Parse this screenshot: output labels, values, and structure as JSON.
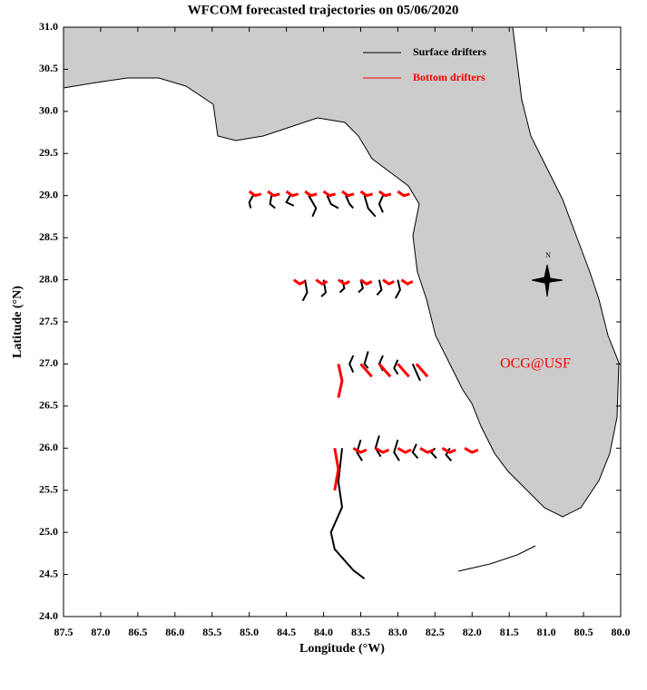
{
  "chart_data": {
    "type": "line",
    "title": "WFCOM forecasted trajectories on 05/06/2020",
    "x_label": "Longitude (°W)",
    "y_label": "Latitude (°N)",
    "annotations": [
      "OCG@USF",
      "N"
    ],
    "xlim": [
      87.5,
      80.0
    ],
    "ylim": [
      24.0,
      31.0
    ],
    "xticks": [
      87.5,
      {
        "value": 87,
        "label": "87.0"
      },
      86.5,
      {
        "value": 86,
        "label": "86.0"
      },
      85.5,
      {
        "value": 85,
        "label": "85.0"
      },
      84.5,
      {
        "value": 84,
        "label": "84.0"
      },
      83.5,
      {
        "value": 83,
        "label": "83.0"
      },
      82.5,
      {
        "value": 82,
        "label": "82.0"
      },
      81.5,
      {
        "value": 81,
        "label": "81.0"
      },
      80.5,
      {
        "value": 80,
        "label": "80.0"
      }
    ],
    "yticks": [
      {
        "value": 24,
        "label": "24.0"
      },
      24.5,
      {
        "value": 25,
        "label": "25.0"
      },
      25.5,
      {
        "value": 26,
        "label": "26.0"
      },
      26.5,
      {
        "value": 27,
        "label": "27.0"
      },
      27.5,
      {
        "value": 28,
        "label": "28.0"
      },
      28.5,
      {
        "value": 29,
        "label": "29.0"
      },
      29.5,
      {
        "value": 30,
        "label": "30.0"
      },
      30.5,
      {
        "value": 31,
        "label": "31.0"
      }
    ],
    "series": [
      {
        "name": "Surface drifters",
        "color": "#000000",
        "x": [
          84.95,
          85.0,
          84.98,
          null,
          84.7,
          84.72,
          84.65,
          null,
          84.45,
          84.5,
          84.4,
          null,
          84.2,
          84.1,
          84.15,
          null,
          83.95,
          83.9,
          83.8,
          null,
          83.7,
          83.65,
          83.6,
          null,
          83.45,
          83.4,
          83.3,
          null,
          83.2,
          83.25,
          83.2,
          null,
          84.25,
          84.22,
          84.28,
          null,
          84.0,
          83.97,
          84.03,
          null,
          83.75,
          83.72,
          83.78,
          null,
          83.5,
          83.47,
          83.53,
          null,
          83.25,
          83.22,
          83.28,
          null,
          83.0,
          82.97,
          83.03,
          null,
          83.6,
          83.65,
          83.6,
          null,
          83.4,
          83.45,
          83.4,
          null,
          83.2,
          83.25,
          83.2,
          null,
          83.0,
          83.05,
          83.0,
          null,
          82.8,
          82.75,
          82.7,
          null,
          83.5,
          83.55,
          83.48,
          null,
          83.25,
          83.3,
          83.23,
          null,
          83.0,
          83.05,
          82.98,
          null,
          82.75,
          82.8,
          82.73,
          null,
          82.5,
          82.55,
          82.48,
          null,
          82.3,
          82.35,
          82.28,
          null,
          83.75,
          83.8,
          83.75,
          83.9,
          83.85,
          83.6,
          83.45
        ],
        "y": [
          29.0,
          28.92,
          28.85,
          null,
          29.0,
          28.9,
          28.85,
          null,
          29.0,
          28.92,
          28.88,
          null,
          29.0,
          28.85,
          28.75,
          null,
          29.0,
          28.9,
          28.85,
          null,
          29.0,
          28.9,
          28.85,
          null,
          29.0,
          28.85,
          28.75,
          null,
          29.0,
          28.9,
          28.8,
          null,
          28.0,
          27.85,
          27.75,
          null,
          28.0,
          27.85,
          27.8,
          null,
          28.0,
          27.9,
          27.85,
          null,
          28.0,
          27.9,
          27.85,
          null,
          28.0,
          27.88,
          27.82,
          null,
          28.0,
          27.88,
          27.78,
          null,
          27.1,
          27.0,
          26.9,
          null,
          27.15,
          27.0,
          26.95,
          null,
          27.1,
          27.0,
          26.92,
          null,
          27.05,
          26.95,
          26.88,
          null,
          27.0,
          26.9,
          26.8,
          null,
          26.1,
          25.95,
          25.85,
          null,
          26.15,
          26.0,
          25.9,
          null,
          26.1,
          25.95,
          25.85,
          null,
          26.05,
          25.95,
          25.88,
          null,
          26.0,
          25.95,
          25.88,
          null,
          26.0,
          25.92,
          25.85,
          null,
          26.0,
          25.6,
          25.3,
          25.0,
          24.8,
          24.55,
          24.45
        ]
      },
      {
        "name": "Bottom drifters",
        "color": "#ff0000",
        "x": [
          85.0,
          84.92,
          84.84,
          null,
          84.75,
          84.67,
          84.59,
          null,
          84.5,
          84.42,
          84.34,
          null,
          84.25,
          84.17,
          84.09,
          null,
          84.0,
          83.92,
          83.84,
          null,
          83.75,
          83.67,
          83.59,
          null,
          83.5,
          83.42,
          83.34,
          null,
          83.25,
          83.17,
          83.09,
          null,
          83.0,
          82.92,
          82.84,
          null,
          84.4,
          84.32,
          84.25,
          null,
          84.1,
          84.02,
          83.95,
          null,
          83.8,
          83.72,
          83.65,
          null,
          83.5,
          83.42,
          83.35,
          null,
          83.2,
          83.12,
          83.05,
          null,
          82.95,
          82.87,
          82.8,
          null,
          83.8,
          83.75,
          83.8,
          null,
          83.5,
          83.4,
          83.35,
          null,
          83.25,
          83.15,
          83.1,
          null,
          83.0,
          82.9,
          82.85,
          null,
          82.75,
          82.65,
          82.6,
          null,
          83.85,
          83.8,
          83.85,
          null,
          83.6,
          83.5,
          83.42,
          null,
          83.3,
          83.2,
          83.12,
          null,
          83.0,
          82.9,
          82.82,
          null,
          82.7,
          82.6,
          82.52,
          null,
          82.4,
          82.3,
          82.22,
          null,
          82.1,
          82.0,
          81.92
        ],
        "y": [
          29.05,
          29.0,
          29.02,
          null,
          29.05,
          29.0,
          29.02,
          null,
          29.05,
          29.0,
          29.02,
          null,
          29.05,
          29.0,
          29.02,
          null,
          29.05,
          29.0,
          29.02,
          null,
          29.05,
          29.0,
          29.02,
          null,
          29.05,
          29.0,
          29.02,
          null,
          29.05,
          29.0,
          29.02,
          null,
          29.05,
          29.0,
          29.02,
          null,
          28.0,
          27.95,
          27.98,
          null,
          28.0,
          27.95,
          27.98,
          null,
          28.0,
          27.95,
          27.98,
          null,
          28.0,
          27.95,
          27.98,
          null,
          28.0,
          27.95,
          27.98,
          null,
          28.0,
          27.95,
          27.98,
          null,
          27.0,
          26.8,
          26.6,
          null,
          27.0,
          26.9,
          26.85,
          null,
          27.0,
          26.9,
          26.85,
          null,
          27.0,
          26.9,
          26.85,
          null,
          27.0,
          26.9,
          26.85,
          null,
          26.0,
          25.75,
          25.5,
          null,
          26.0,
          25.95,
          25.98,
          null,
          26.0,
          25.95,
          25.98,
          null,
          26.0,
          25.95,
          25.98,
          null,
          26.0,
          25.95,
          25.98,
          null,
          26.0,
          25.95,
          25.98,
          null,
          26.0,
          25.95,
          25.98
        ]
      }
    ]
  }
}
